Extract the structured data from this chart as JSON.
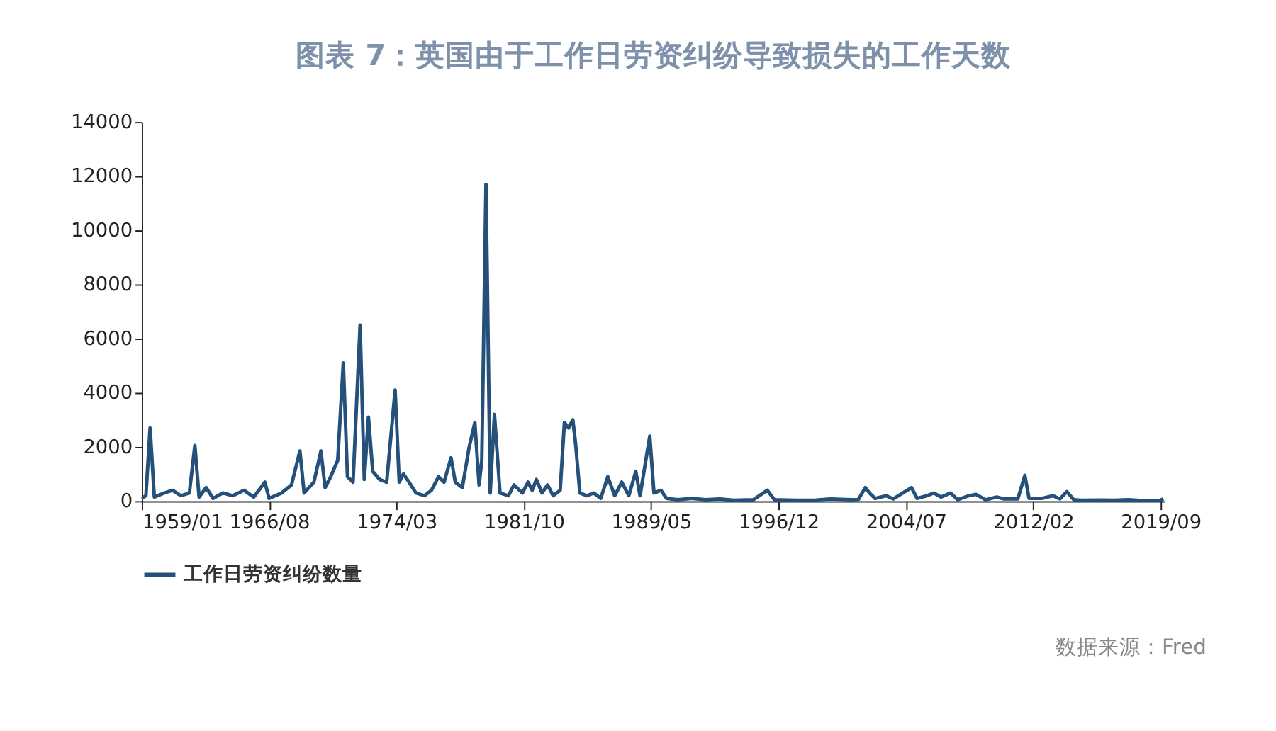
{
  "chart_data": {
    "type": "line",
    "title": "图表 7：英国由于工作日劳资纠纷导致损失的工作天数",
    "x": [
      "1959-01",
      "1959-04",
      "1959-07",
      "1959-10",
      "1960-05",
      "1960-11",
      "1961-05",
      "1961-11",
      "1962-03",
      "1962-06",
      "1962-11",
      "1963-04",
      "1963-11",
      "1964-06",
      "1965-02",
      "1965-09",
      "1966-05",
      "1966-08",
      "1967-05",
      "1967-12",
      "1968-06",
      "1968-09",
      "1969-04",
      "1969-09",
      "1969-12",
      "1970-04",
      "1970-09",
      "1971-01",
      "1971-04",
      "1971-08",
      "1972-01",
      "1972-04",
      "1972-07",
      "1972-10",
      "1973-03",
      "1973-08",
      "1974-02",
      "1974-05",
      "1974-08",
      "1974-12",
      "1975-05",
      "1975-11",
      "1976-04",
      "1976-09",
      "1977-01",
      "1977-06",
      "1977-09",
      "1978-02",
      "1978-07",
      "1978-11",
      "1979-02",
      "1979-04",
      "1979-07",
      "1979-10",
      "1980-01",
      "1980-05",
      "1980-11",
      "1981-03",
      "1981-09",
      "1982-01",
      "1982-04",
      "1982-07",
      "1982-11",
      "1983-03",
      "1983-07",
      "1983-12",
      "1984-03",
      "1984-06",
      "1984-09",
      "1984-11",
      "1985-02",
      "1985-07",
      "1985-12",
      "1986-05",
      "1986-10",
      "1987-03",
      "1987-08",
      "1988-01",
      "1988-06",
      "1988-09",
      "1989-04",
      "1989-07",
      "1989-12",
      "1990-04",
      "1990-12",
      "1991-10",
      "1992-08",
      "1993-06",
      "1994-04",
      "1995-06",
      "1996-04",
      "1996-09",
      "1997-12",
      "1999-03",
      "2000-01",
      "2001-04",
      "2001-09",
      "2002-02",
      "2002-05",
      "2002-09",
      "2003-05",
      "2003-10",
      "2004-11",
      "2005-03",
      "2005-10",
      "2006-03",
      "2006-08",
      "2007-03",
      "2007-08",
      "2008-04",
      "2008-09",
      "2009-04",
      "2009-12",
      "2010-05",
      "2011-03",
      "2011-08",
      "2011-11",
      "2012-08",
      "2013-04",
      "2013-09",
      "2014-02",
      "2014-07",
      "2014-12",
      "2016-02",
      "2016-12",
      "2017-10",
      "2018-08",
      "2019-08",
      "2019-11"
    ],
    "series": [
      {
        "name": "工作日劳资纠纷数量",
        "color": "#24507a",
        "values": [
          100,
          200,
          2700,
          150,
          300,
          400,
          200,
          300,
          2050,
          150,
          500,
          100,
          300,
          200,
          400,
          150,
          700,
          100,
          300,
          600,
          1850,
          300,
          700,
          1850,
          500,
          900,
          1500,
          5100,
          900,
          700,
          6500,
          800,
          3100,
          1100,
          800,
          700,
          4100,
          700,
          1000,
          700,
          300,
          200,
          400,
          900,
          700,
          1600,
          700,
          500,
          2000,
          2900,
          600,
          1500,
          11700,
          300,
          3200,
          300,
          200,
          600,
          300,
          700,
          400,
          800,
          300,
          600,
          200,
          400,
          2900,
          2700,
          3000,
          2100,
          300,
          200,
          300,
          100,
          900,
          200,
          700,
          200,
          1100,
          200,
          2400,
          300,
          400,
          100,
          50,
          100,
          50,
          80,
          30,
          50,
          400,
          50,
          30,
          40,
          80,
          50,
          60,
          500,
          300,
          100,
          200,
          80,
          500,
          100,
          200,
          300,
          150,
          300,
          50,
          200,
          250,
          50,
          150,
          80,
          80,
          950,
          100,
          100,
          200,
          80,
          350,
          50,
          30,
          40,
          30,
          50,
          20,
          20,
          80
        ]
      }
    ],
    "xlim": [
      "1959-01",
      "2019-12"
    ],
    "xticks": [
      {
        "value": "1959-01",
        "label": "1959/01"
      },
      {
        "value": "1966-08",
        "label": "1966/08"
      },
      {
        "value": "1974-03",
        "label": "1974/03"
      },
      {
        "value": "1981-10",
        "label": "1981/10"
      },
      {
        "value": "1989-05",
        "label": "1989/05"
      },
      {
        "value": "1996-12",
        "label": "1996/12"
      },
      {
        "value": "2004-07",
        "label": "2004/07"
      },
      {
        "value": "2012-02",
        "label": "2012/02"
      },
      {
        "value": "2019-09",
        "label": "2019/09"
      }
    ],
    "ylim": [
      0,
      14000
    ],
    "yticks": [
      0,
      2000,
      4000,
      6000,
      8000,
      10000,
      12000,
      14000
    ],
    "grid": false,
    "legend": "bottom",
    "line_style": "solid",
    "marker": "none",
    "annotations": [
      "数据来源：Fred"
    ]
  }
}
